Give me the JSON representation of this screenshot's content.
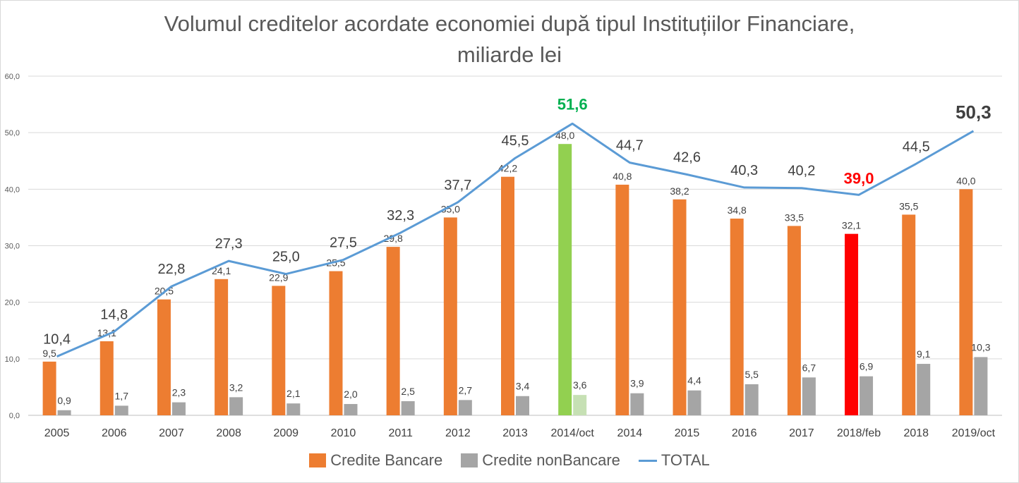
{
  "title_line1": "Volumul creditelor acordate economiei după tipul Instituțiilor Financiare,",
  "title_line2": "miliarde lei",
  "legend": [
    "Credite Bancare",
    "Credite nonBancare",
    "TOTAL"
  ],
  "colors": {
    "bancare": "#ed7d31",
    "nonbancare": "#a5a5a5",
    "total": "#5b9bd5",
    "highlight_green": "#92d050",
    "highlight_green_light": "#c6e0b4",
    "highlight_red": "#ff0000",
    "label_green": "#00b050",
    "label_red": "#ff0000"
  },
  "chart_data": {
    "type": "bar",
    "categories": [
      "2005",
      "2006",
      "2007",
      "2008",
      "2009",
      "2010",
      "2011",
      "2012",
      "2013",
      "2014/oct",
      "2014",
      "2015",
      "2016",
      "2017",
      "2018/feb",
      "2018",
      "2019/oct"
    ],
    "series": [
      {
        "name": "Credite Bancare",
        "type": "bar",
        "values": [
          9.5,
          13.1,
          20.5,
          24.1,
          22.9,
          25.5,
          29.8,
          35.0,
          42.2,
          48.0,
          40.8,
          38.2,
          34.8,
          33.5,
          32.1,
          35.5,
          40.0
        ]
      },
      {
        "name": "Credite nonBancare",
        "type": "bar",
        "values": [
          0.9,
          1.7,
          2.3,
          3.2,
          2.1,
          2.0,
          2.5,
          2.7,
          3.4,
          3.6,
          3.9,
          4.4,
          5.5,
          6.7,
          6.9,
          9.1,
          10.3
        ]
      },
      {
        "name": "TOTAL",
        "type": "line",
        "values": [
          10.4,
          14.8,
          22.8,
          27.3,
          25.0,
          27.5,
          32.3,
          37.7,
          45.5,
          51.6,
          44.7,
          42.6,
          40.3,
          40.2,
          39.0,
          44.5,
          50.3
        ]
      }
    ],
    "highlights": {
      "2014/oct": "green",
      "2018/feb": "red",
      "2019/oct": "bold"
    },
    "yticks": [
      "0,0",
      "10,0",
      "20,0",
      "30,0",
      "40,0",
      "50,0",
      "60,0"
    ],
    "ylim": [
      0,
      60
    ],
    "grid": true,
    "legend_position": "bottom"
  }
}
